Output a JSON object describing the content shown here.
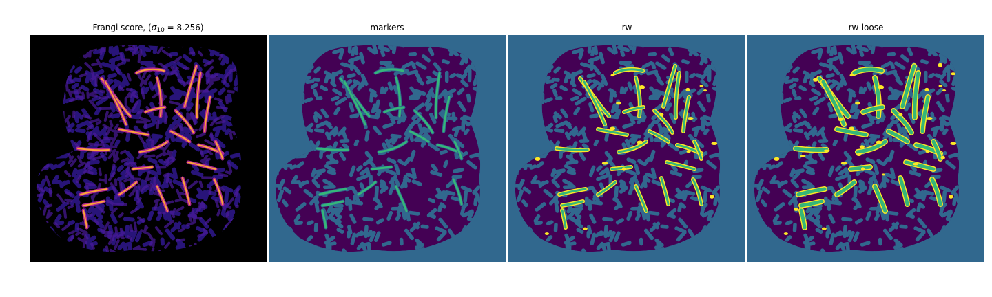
{
  "panels": [
    {
      "id": "frangi",
      "title_prefix": "Frangi score, (",
      "sigma_symbol": "σ",
      "sigma_sub": "10",
      "title_suffix": " = 8.256)"
    },
    {
      "id": "markers",
      "title": "markers"
    },
    {
      "id": "rw",
      "title": "rw"
    },
    {
      "id": "rw_loose",
      "title": "rw-loose"
    }
  ],
  "colors": {
    "frangi_background": "#000000",
    "frangi_blob": "#2a1580",
    "frangi_vessel_outer": "#b12a90",
    "frangi_vessel_core": "#fca636",
    "seg_background": "#31688e",
    "seg_tissue": "#440154",
    "marker_vessel": "#35b779",
    "rw_vessel_fill": "#35b779",
    "rw_vessel_outline": "#fde725"
  }
}
